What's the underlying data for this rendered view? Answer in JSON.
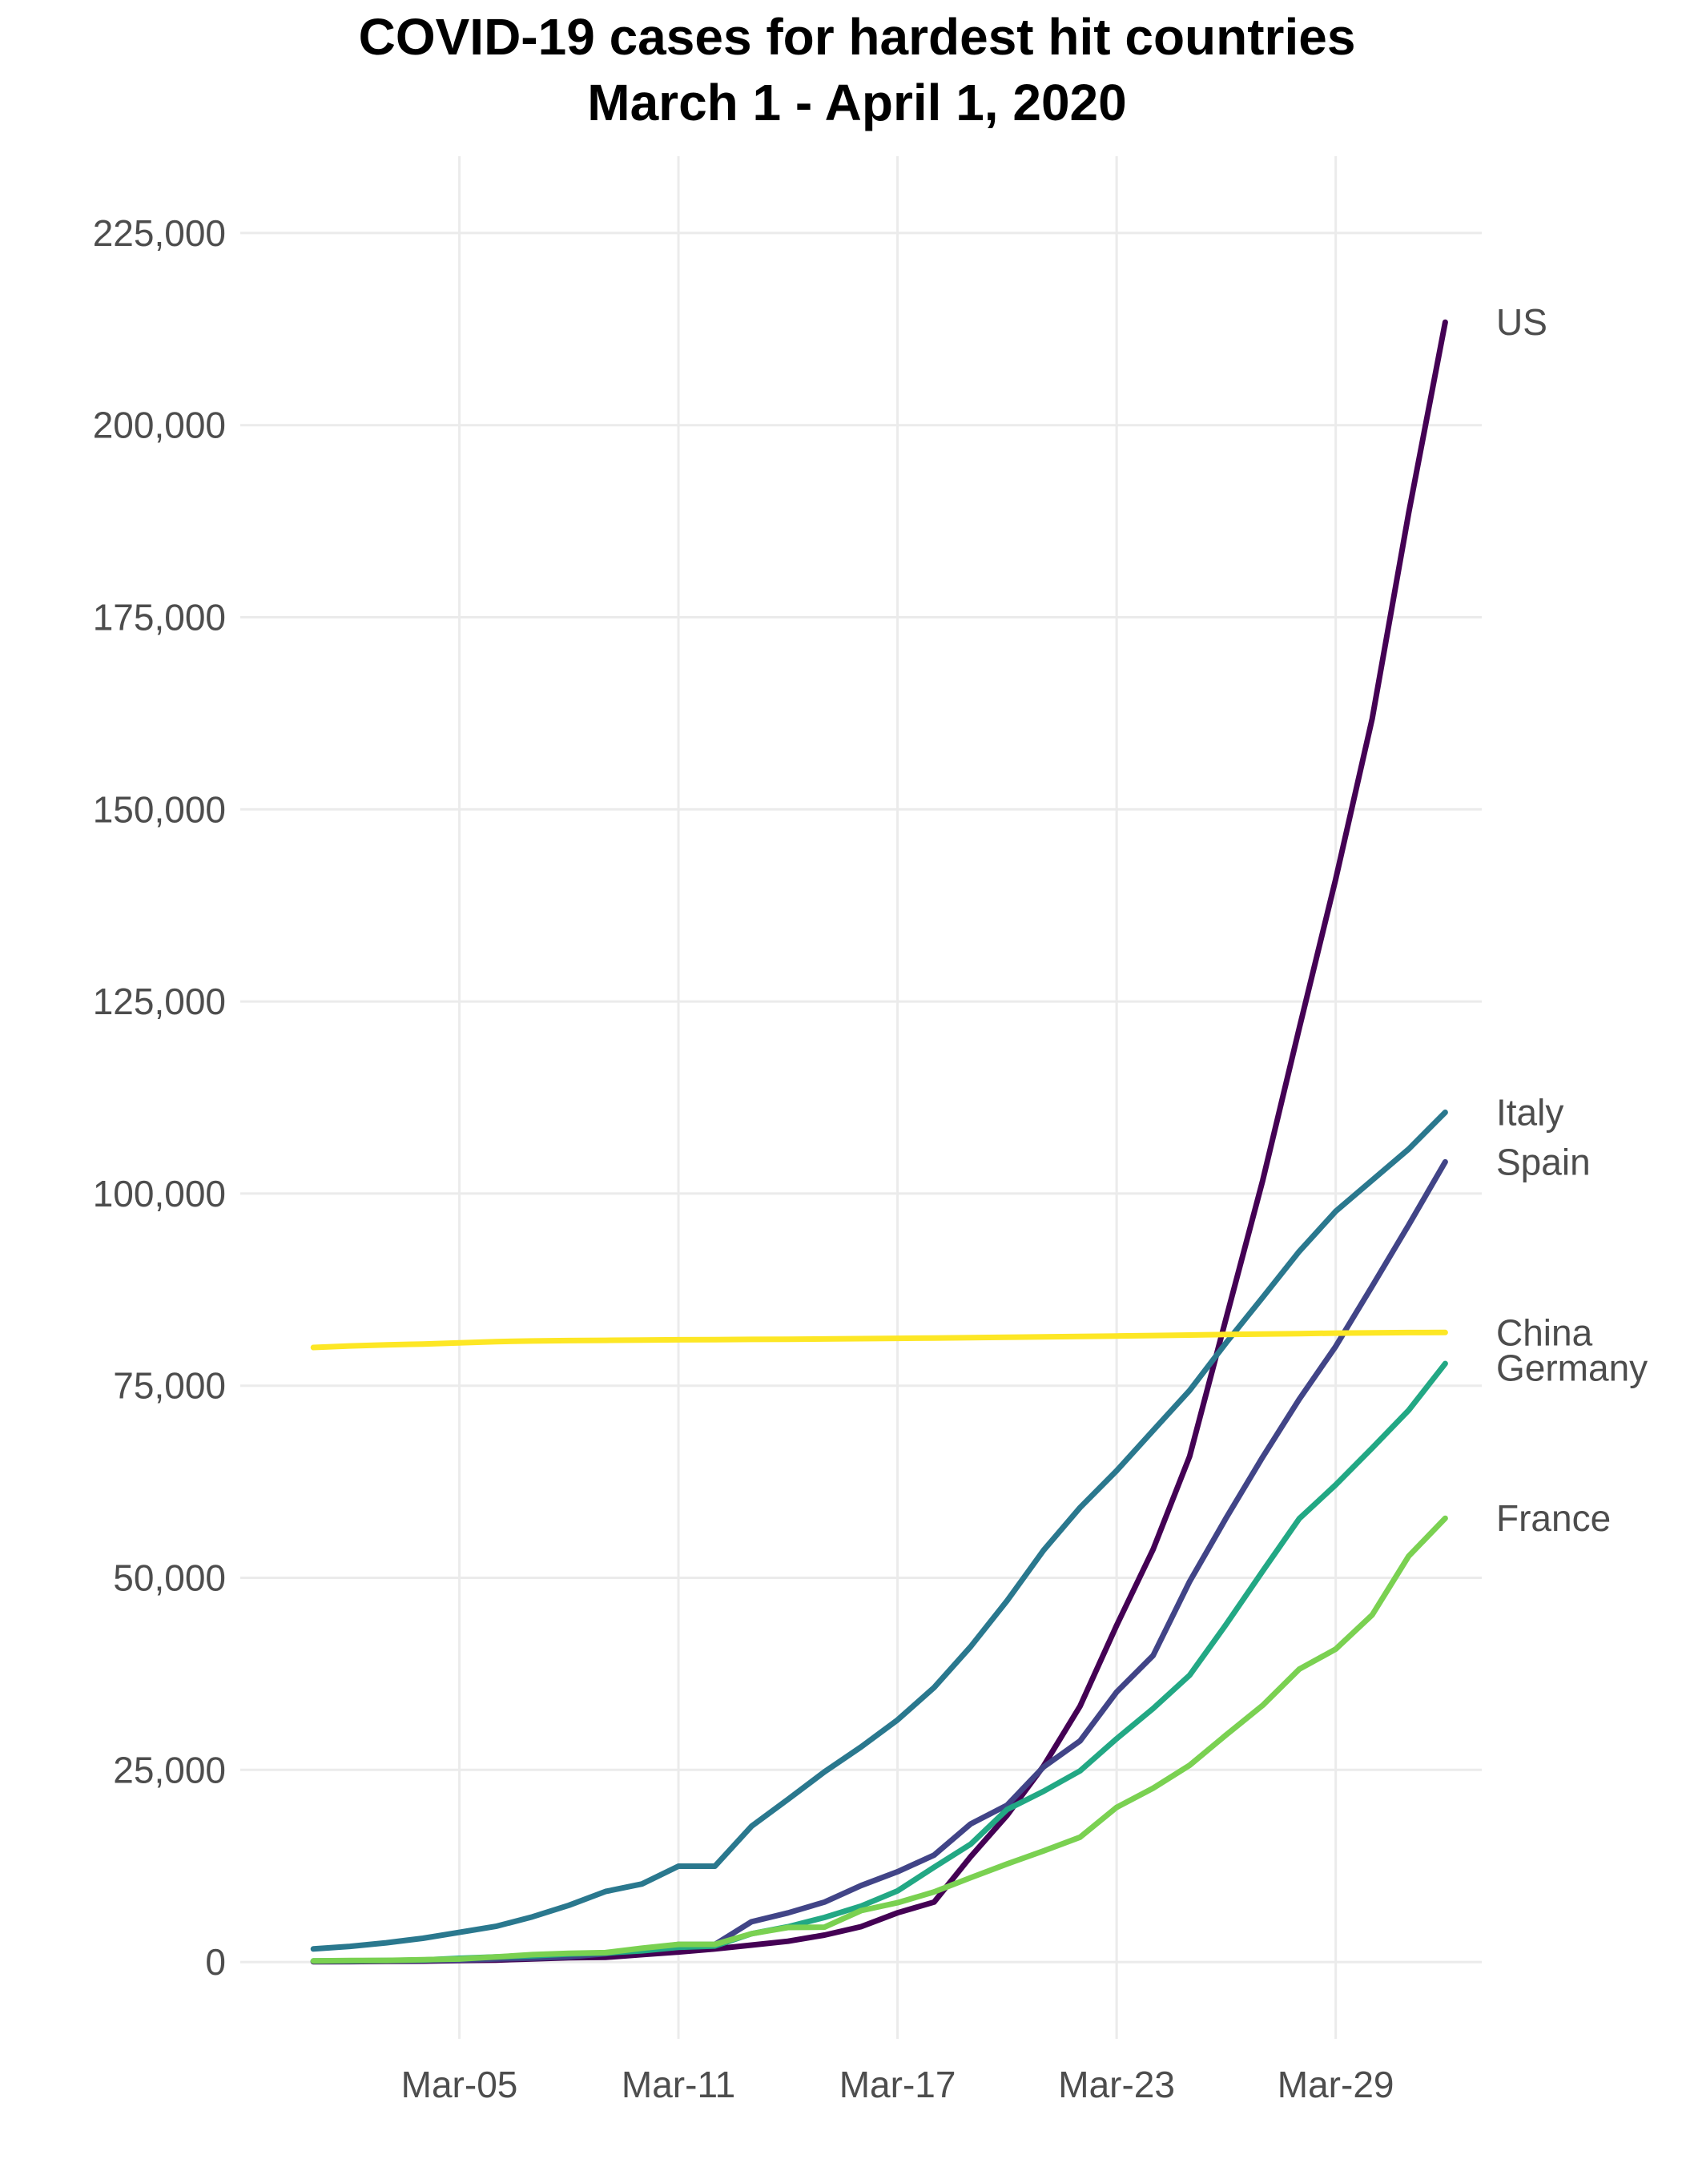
{
  "chart_data": {
    "type": "line",
    "title": "COVID-19 cases for hardest hit countries",
    "subtitle": "March 1 - April 1, 2020",
    "xlabel": "",
    "ylabel": "",
    "x_ticks": [
      "Mar-05",
      "Mar-11",
      "Mar-17",
      "Mar-23",
      "Mar-29"
    ],
    "y_ticks": [
      "0",
      "25,000",
      "50,000",
      "75,000",
      "100,000",
      "125,000",
      "150,000",
      "175,000",
      "200,000",
      "225,000"
    ],
    "ylim": [
      -10000,
      235000
    ],
    "xlim": [
      "2020-02-28",
      "2020-04-02"
    ],
    "grid": true,
    "legend": "direct labels at line ends (right)",
    "x": [
      "2020-03-01",
      "2020-03-02",
      "2020-03-03",
      "2020-03-04",
      "2020-03-05",
      "2020-03-06",
      "2020-03-07",
      "2020-03-08",
      "2020-03-09",
      "2020-03-10",
      "2020-03-11",
      "2020-03-12",
      "2020-03-13",
      "2020-03-14",
      "2020-03-15",
      "2020-03-16",
      "2020-03-17",
      "2020-03-18",
      "2020-03-19",
      "2020-03-20",
      "2020-03-21",
      "2020-03-22",
      "2020-03-23",
      "2020-03-24",
      "2020-03-25",
      "2020-03-26",
      "2020-03-27",
      "2020-03-28",
      "2020-03-29",
      "2020-03-30",
      "2020-03-31",
      "2020-04-01"
    ],
    "series": [
      {
        "name": "US",
        "color": "#440154",
        "values": [
          30,
          50,
          80,
          110,
          200,
          250,
          400,
          550,
          600,
          960,
          1300,
          1700,
          2200,
          2700,
          3500,
          4600,
          6400,
          7800,
          13700,
          19100,
          25500,
          33300,
          43800,
          53700,
          65800,
          83800,
          101700,
          121500,
          140900,
          161800,
          188600,
          213400
        ]
      },
      {
        "name": "Italy",
        "color": "#2a788e",
        "values": [
          1694,
          2036,
          2502,
          3089,
          3858,
          4636,
          5883,
          7375,
          9172,
          10149,
          12462,
          12462,
          17660,
          21157,
          24747,
          27980,
          31506,
          35713,
          41035,
          47021,
          53578,
          59138,
          63927,
          69176,
          74386,
          80589,
          86498,
          92472,
          97689,
          101739,
          105792,
          110574
        ]
      },
      {
        "name": "Spain",
        "color": "#414487",
        "values": [
          84,
          120,
          165,
          222,
          259,
          400,
          500,
          673,
          1073,
          1695,
          2277,
          2277,
          5232,
          6391,
          7798,
          9942,
          11748,
          13910,
          17963,
          20410,
          25374,
          28768,
          35136,
          39885,
          49515,
          57786,
          65719,
          73235,
          80110,
          87956,
          95923,
          104118
        ]
      },
      {
        "name": "China",
        "color": "#fde725",
        "values": [
          79968,
          80174,
          80303,
          80424,
          80581,
          80734,
          80815,
          80868,
          80905,
          80932,
          80969,
          80991,
          81021,
          81048,
          81077,
          81120,
          81156,
          81203,
          81251,
          81300,
          81357,
          81397,
          81466,
          81522,
          81593,
          81658,
          81722,
          81777,
          81839,
          81879,
          81911,
          81923
        ]
      },
      {
        "name": "Germany",
        "color": "#22a884",
        "values": [
          130,
          159,
          196,
          262,
          482,
          670,
          799,
          1040,
          1176,
          1457,
          1908,
          2078,
          3675,
          4585,
          5795,
          7272,
          9257,
          12327,
          15320,
          19848,
          22213,
          24873,
          29056,
          32986,
          37323,
          43938,
          50871,
          57695,
          62095,
          66885,
          71808,
          77872
        ]
      },
      {
        "name": "France",
        "color": "#7ad151",
        "values": [
          130,
          191,
          204,
          288,
          380,
          656,
          959,
          1136,
          1219,
          1794,
          2293,
          2293,
          3681,
          4496,
          4532,
          6683,
          7715,
          9124,
          10970,
          12758,
          14463,
          16243,
          20123,
          22622,
          25600,
          29551,
          33402,
          38105,
          40708,
          45170,
          52827,
          57749
        ]
      }
    ]
  }
}
